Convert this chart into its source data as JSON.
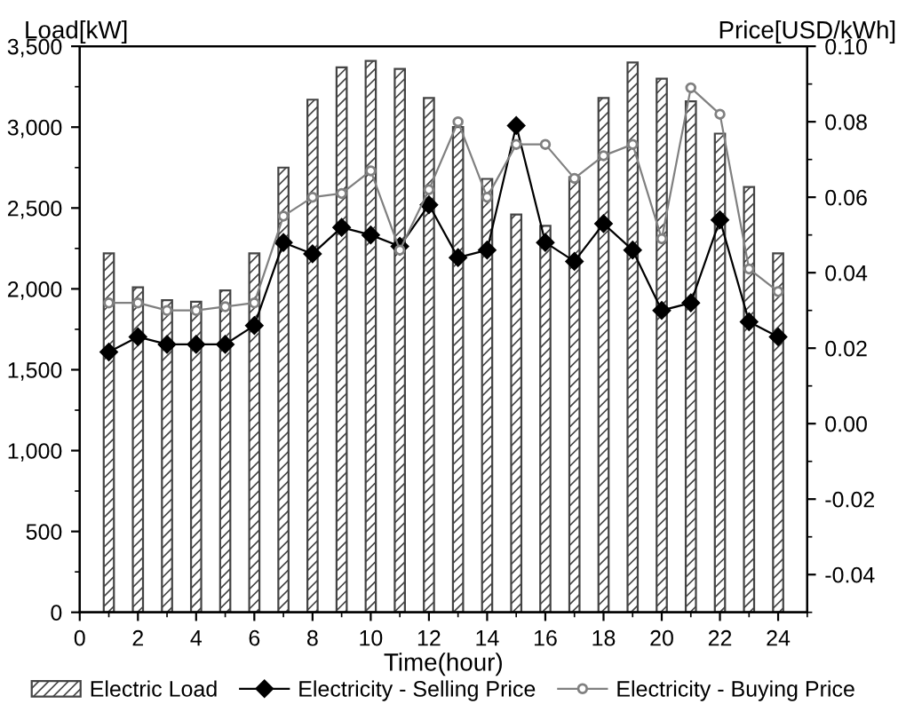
{
  "chart_data": {
    "type": "bar",
    "xlabel": "Time(hour)",
    "ylabel": "Load[kW]",
    "y2label": "Price[USD/kWh]",
    "x": [
      1,
      2,
      3,
      4,
      5,
      6,
      7,
      8,
      9,
      10,
      11,
      12,
      13,
      14,
      15,
      16,
      17,
      18,
      19,
      20,
      21,
      22,
      23,
      24
    ],
    "xlim": [
      0,
      25
    ],
    "xticks": [
      0,
      2,
      4,
      6,
      8,
      10,
      12,
      14,
      16,
      18,
      20,
      22,
      24
    ],
    "ylim": [
      0,
      3500
    ],
    "yticks": [
      {
        "value": 0,
        "label": "0"
      },
      {
        "value": 500,
        "label": "500"
      },
      {
        "value": 1000,
        "label": "1,000"
      },
      {
        "value": 1500,
        "label": "1,500"
      },
      {
        "value": 2000,
        "label": "2,000"
      },
      {
        "value": 2500,
        "label": "2,500"
      },
      {
        "value": 3000,
        "label": "3,000"
      },
      {
        "value": 3500,
        "label": "3,500"
      }
    ],
    "y2lim": [
      -0.05,
      0.1
    ],
    "y2ticks": [
      {
        "value": -0.04,
        "label": "-0.04"
      },
      {
        "value": -0.02,
        "label": "-0.02"
      },
      {
        "value": 0,
        "label": "0.00"
      },
      {
        "value": 0.02,
        "label": "0.02"
      },
      {
        "value": 0.04,
        "label": "0.04"
      },
      {
        "value": 0.06,
        "label": "0.06"
      },
      {
        "value": 0.08,
        "label": "0.08"
      },
      {
        "value": 0.1,
        "label": "0.10"
      }
    ],
    "grid": false,
    "legend": "bottom",
    "series": [
      {
        "name": "Electric Load",
        "color": "#444444",
        "values": [
          2220,
          2010,
          1930,
          1920,
          1990,
          2220,
          2750,
          3170,
          3370,
          3410,
          3360,
          3180,
          3000,
          2680,
          2460,
          2390,
          2690,
          3180,
          3400,
          3300,
          3160,
          2960,
          2630,
          2220
        ]
      },
      {
        "name": "Electricity - Selling Price",
        "type": "line",
        "axis": "y2",
        "color": "#000000",
        "marker": "diamond",
        "values": [
          0.019,
          0.023,
          0.021,
          0.021,
          0.021,
          0.026,
          0.048,
          0.045,
          0.052,
          0.05,
          0.047,
          0.058,
          0.044,
          0.046,
          0.079,
          0.048,
          0.043,
          0.053,
          0.046,
          0.03,
          0.032,
          0.054,
          0.027,
          0.023
        ]
      },
      {
        "name": "Electricity - Buying Price",
        "type": "line",
        "axis": "y2",
        "color": "#808080",
        "marker": "circle",
        "values": [
          0.032,
          0.032,
          0.03,
          0.03,
          0.031,
          0.032,
          0.055,
          0.06,
          0.061,
          0.067,
          0.046,
          0.062,
          0.08,
          0.06,
          0.074,
          0.074,
          0.065,
          0.071,
          0.074,
          0.049,
          0.089,
          0.082,
          0.041,
          0.035
        ]
      }
    ]
  }
}
